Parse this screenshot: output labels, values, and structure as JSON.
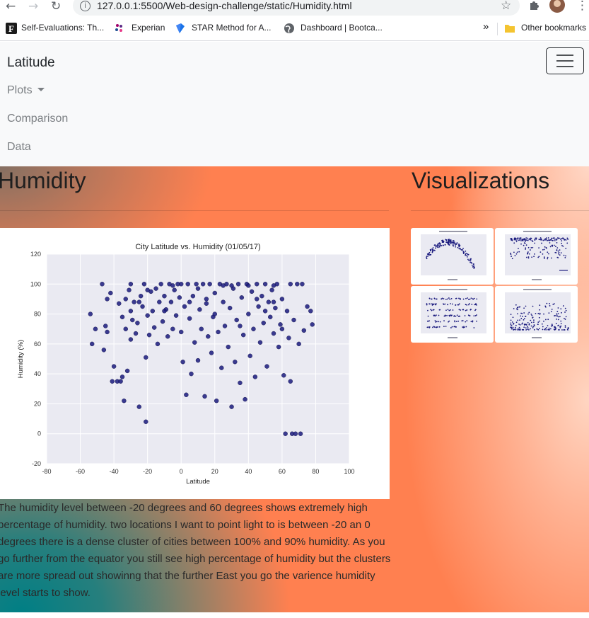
{
  "browser": {
    "url": "127.0.0.1:5500/Web-design-challenge/static/Humidity.html",
    "back_icon": "←",
    "forward_icon": "→",
    "reload_icon": "↻",
    "star_icon": "☆",
    "kebab_icon": "⋮"
  },
  "bookmarks": {
    "items": [
      {
        "label": "Self-Evaluations: Th..."
      },
      {
        "label": "Experian"
      },
      {
        "label": "STAR Method for A..."
      },
      {
        "label": "Dashboard | Bootca..."
      }
    ],
    "more": "»",
    "other": "Other bookmarks"
  },
  "navbar": {
    "brand": "Latitude",
    "links": [
      "Plots",
      "Comparison",
      "Data"
    ]
  },
  "main": {
    "title": "Humidity",
    "description": "The humidity level between -20 degrees and 60 degrees shows extremely high percentage of humidity. two locations I want to point light to is between -20 an 0 degrees there is a dense cluster of cities between 100% and 90% humidity. As you go further from the equator you still see high percentage of humidity but the clusters are more spread out showinng that the further East you go the varience humidity level starts to show."
  },
  "sidebar": {
    "title": "Visualizations"
  },
  "colors": {
    "point": "#1a1a7e",
    "plot_bg": "#eaeaf2",
    "orange": "#ff8050",
    "teal": "#007f85"
  },
  "chart_data": {
    "type": "scatter",
    "title": "City Latitude vs. Humidity (01/05/17)",
    "xlabel": "Latitude",
    "ylabel": "Humidity (%)",
    "xlim": [
      -80,
      100
    ],
    "ylim": [
      -20,
      120
    ],
    "xticks": [
      -80,
      -60,
      -40,
      -20,
      0,
      20,
      40,
      60,
      80,
      100
    ],
    "yticks": [
      -20,
      0,
      20,
      40,
      60,
      80,
      100,
      120
    ],
    "grid": true,
    "points": [
      [
        -54,
        80
      ],
      [
        -53,
        60
      ],
      [
        -51,
        70
      ],
      [
        -47,
        100
      ],
      [
        -46,
        56
      ],
      [
        -45,
        72
      ],
      [
        -44,
        68
      ],
      [
        -44,
        90
      ],
      [
        -42,
        94
      ],
      [
        -41,
        35
      ],
      [
        -40,
        45
      ],
      [
        -38,
        35
      ],
      [
        -37,
        87
      ],
      [
        -36,
        35
      ],
      [
        -35,
        38
      ],
      [
        -35,
        78
      ],
      [
        -34,
        22
      ],
      [
        -33,
        90
      ],
      [
        -33,
        70
      ],
      [
        -32,
        42
      ],
      [
        -31,
        96
      ],
      [
        -30,
        63
      ],
      [
        -30,
        82
      ],
      [
        -29,
        76
      ],
      [
        -28,
        88
      ],
      [
        -27,
        67
      ],
      [
        -26,
        74
      ],
      [
        -25,
        18
      ],
      [
        -24,
        92
      ],
      [
        -23,
        85
      ],
      [
        -22,
        100
      ],
      [
        -21,
        51
      ],
      [
        -21,
        8
      ],
      [
        -20,
        79
      ],
      [
        -19,
        66
      ],
      [
        -18,
        95
      ],
      [
        -17,
        82
      ],
      [
        -16,
        71
      ],
      [
        -15,
        97
      ],
      [
        -14,
        60
      ],
      [
        -13,
        88
      ],
      [
        -12,
        100
      ],
      [
        -11,
        75
      ],
      [
        -10,
        92
      ],
      [
        -9,
        83
      ],
      [
        -8,
        65
      ],
      [
        -7,
        100
      ],
      [
        -6,
        88
      ],
      [
        -5,
        70
      ],
      [
        -4,
        96
      ],
      [
        -3,
        79
      ],
      [
        -2,
        100
      ],
      [
        -1,
        91
      ],
      [
        0,
        68
      ],
      [
        1,
        48
      ],
      [
        2,
        85
      ],
      [
        3,
        26
      ],
      [
        4,
        100
      ],
      [
        5,
        77
      ],
      [
        6,
        40
      ],
      [
        7,
        92
      ],
      [
        8,
        61
      ],
      [
        9,
        100
      ],
      [
        10,
        49
      ],
      [
        11,
        83
      ],
      [
        12,
        70
      ],
      [
        13,
        100
      ],
      [
        14,
        25
      ],
      [
        15,
        87
      ],
      [
        16,
        65
      ],
      [
        17,
        100
      ],
      [
        18,
        54
      ],
      [
        19,
        78
      ],
      [
        20,
        94
      ],
      [
        21,
        22
      ],
      [
        22,
        68
      ],
      [
        23,
        100
      ],
      [
        24,
        44
      ],
      [
        25,
        88
      ],
      [
        26,
        72
      ],
      [
        27,
        100
      ],
      [
        28,
        58
      ],
      [
        29,
        84
      ],
      [
        30,
        18
      ],
      [
        31,
        97
      ],
      [
        32,
        48
      ],
      [
        33,
        76
      ],
      [
        34,
        100
      ],
      [
        35,
        34
      ],
      [
        36,
        91
      ],
      [
        37,
        66
      ],
      [
        38,
        23
      ],
      [
        39,
        100
      ],
      [
        40,
        80
      ],
      [
        41,
        52
      ],
      [
        42,
        95
      ],
      [
        43,
        70
      ],
      [
        44,
        38
      ],
      [
        45,
        100
      ],
      [
        46,
        85
      ],
      [
        47,
        61
      ],
      [
        48,
        92
      ],
      [
        49,
        74
      ],
      [
        50,
        100
      ],
      [
        51,
        45
      ],
      [
        52,
        88
      ],
      [
        53,
        78
      ],
      [
        54,
        96
      ],
      [
        55,
        67
      ],
      [
        56,
        84
      ],
      [
        57,
        100
      ],
      [
        58,
        58
      ],
      [
        59,
        73
      ],
      [
        60,
        90
      ],
      [
        61,
        39
      ],
      [
        62,
        0
      ],
      [
        63,
        82
      ],
      [
        64,
        64
      ],
      [
        65,
        35
      ],
      [
        66,
        0
      ],
      [
        67,
        76
      ],
      [
        68,
        0
      ],
      [
        69,
        100
      ],
      [
        70,
        60
      ],
      [
        71,
        0
      ],
      [
        72,
        100
      ],
      [
        73,
        69
      ],
      [
        75,
        85
      ],
      [
        77,
        82
      ],
      [
        78,
        73
      ],
      [
        -20,
        96
      ],
      [
        -5,
        99
      ],
      [
        10,
        97
      ],
      [
        25,
        99
      ],
      [
        40,
        99
      ],
      [
        55,
        99
      ],
      [
        65,
        100
      ],
      [
        -30,
        100
      ],
      [
        0,
        100
      ],
      [
        30,
        99
      ],
      [
        45,
        90
      ],
      [
        50,
        82
      ],
      [
        55,
        88
      ],
      [
        60,
        70
      ],
      [
        35,
        72
      ],
      [
        20,
        80
      ],
      [
        15,
        90
      ],
      [
        -10,
        82
      ],
      [
        -25,
        88
      ],
      [
        5,
        88
      ]
    ]
  }
}
